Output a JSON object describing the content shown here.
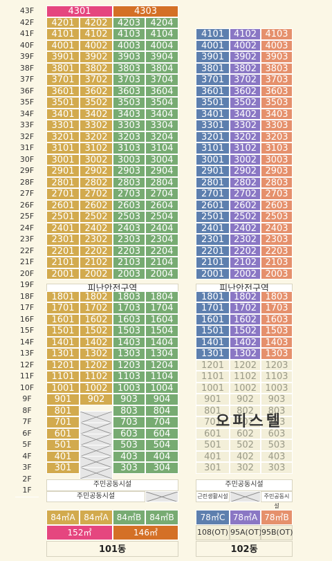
{
  "colors": {
    "mustard": "#d2aa4e",
    "green": "#77ab72",
    "blue": "#5d7fae",
    "purple": "#8a77c4",
    "salmon": "#e5906c",
    "pink": "#e5467f",
    "orange": "#d47026",
    "office_bg": "#f3efd9",
    "office_text": "#9a9a88",
    "page_bg": "#fbf7e6"
  },
  "floors": [
    "43F",
    "42F",
    "41F",
    "40F",
    "39F",
    "38F",
    "37F",
    "36F",
    "35F",
    "34F",
    "33F",
    "32F",
    "31F",
    "30F",
    "29F",
    "28F",
    "27F",
    "26F",
    "25F",
    "24F",
    "23F",
    "22F",
    "21F",
    "20F",
    "19F",
    "18F",
    "17F",
    "16F",
    "15F",
    "14F",
    "13F",
    "12F",
    "11F",
    "10F",
    "9F",
    "8F",
    "7F",
    "6F",
    "5F",
    "4F",
    "3F",
    "2F",
    "1F"
  ],
  "building101": {
    "floor43": [
      "4301",
      "4303"
    ],
    "refuge_label": "피난안전구역",
    "community_2f": "주민공동시설",
    "community_1f": "주민공동시설",
    "types": [
      "84㎡A",
      "84㎡A",
      "84㎡B",
      "84㎡B"
    ],
    "penthouse_types": [
      "152㎡",
      "146㎡"
    ],
    "name": "101동"
  },
  "building102": {
    "refuge_label": "피난안전구역",
    "office_label": "오피스텔",
    "community_2f": "주민공동시설",
    "nbhd_1f": "근린생활시설",
    "community_1f": "주민공동시설",
    "types": [
      "78㎡C",
      "78㎡A",
      "78㎡B"
    ],
    "ot_types": [
      "108(OT)",
      "95A(OT)",
      "95B(OT)"
    ],
    "name": "102동"
  }
}
